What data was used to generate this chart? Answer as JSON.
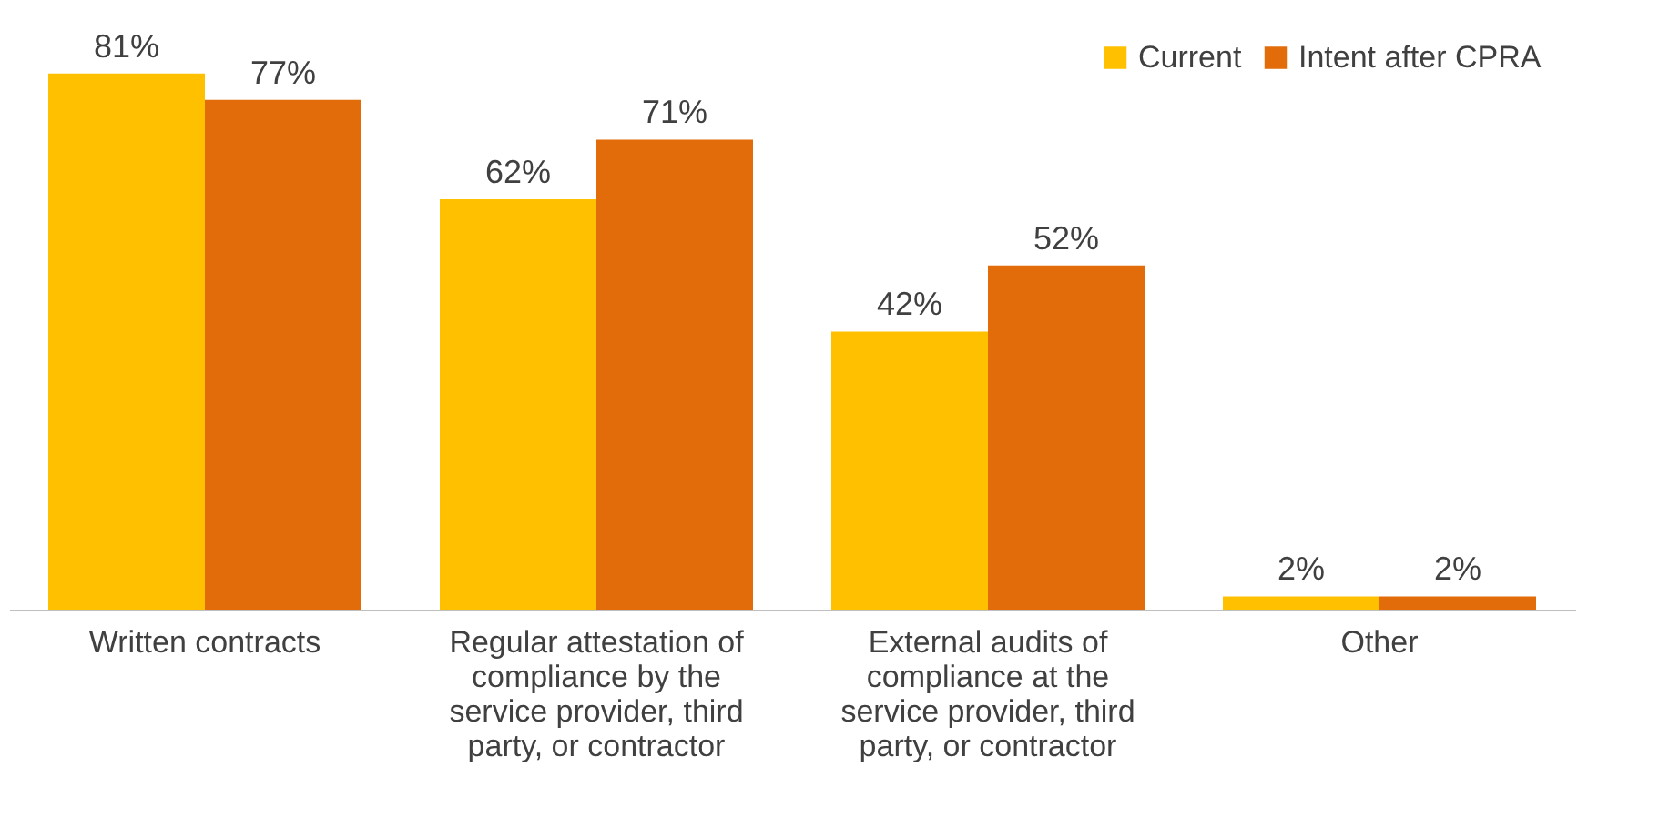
{
  "chart_data": {
    "type": "bar",
    "categories": [
      "Written contracts",
      "Regular attestation of compliance by the service provider, third party, or contractor",
      "External audits of compliance at the service provider, third party, or contractor",
      "Other"
    ],
    "series": [
      {
        "name": "Current",
        "color": "#ffc000",
        "values": [
          81,
          62,
          42,
          2
        ],
        "value_labels": [
          "81%",
          "62%",
          "42%",
          "2%"
        ]
      },
      {
        "name": "Intent after CPRA",
        "color": "#e36c0a",
        "values": [
          77,
          71,
          52,
          2
        ],
        "value_labels": [
          "77%",
          "71%",
          "52%",
          "2%"
        ]
      }
    ],
    "legend": "top right",
    "grid": false
  }
}
